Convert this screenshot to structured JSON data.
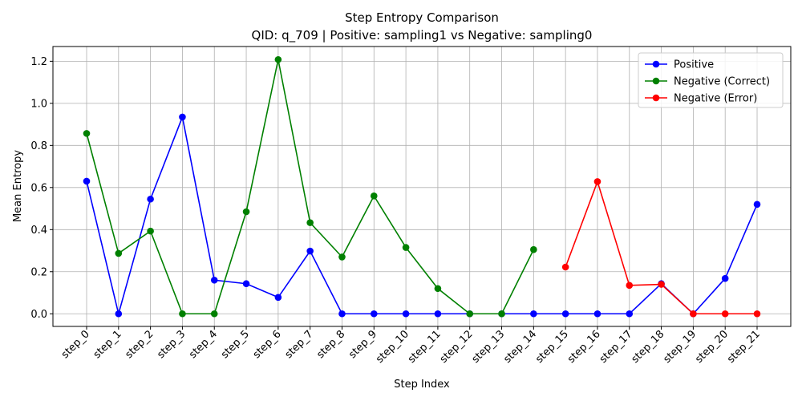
{
  "chart_data": {
    "type": "line",
    "title": "Step Entropy Comparison",
    "subtitle": "QID: q_709 | Positive: sampling1 vs Negative: sampling0",
    "xlabel": "Step Index",
    "ylabel": "Mean Entropy",
    "ylim": [
      -0.06,
      1.27
    ],
    "yticks": [
      0.0,
      0.2,
      0.4,
      0.6,
      0.8,
      1.0,
      1.2
    ],
    "ytick_labels": [
      "0.0",
      "0.2",
      "0.4",
      "0.6",
      "0.8",
      "1.0",
      "1.2"
    ],
    "categories": [
      "step_0",
      "step_1",
      "step_2",
      "step_3",
      "step_4",
      "step_5",
      "step_6",
      "step_7",
      "step_8",
      "step_9",
      "step_10",
      "step_11",
      "step_12",
      "step_13",
      "step_14",
      "step_15",
      "step_16",
      "step_17",
      "step_18",
      "step_19",
      "step_20",
      "step_21"
    ],
    "grid": true,
    "legend_position": "top-right",
    "series": [
      {
        "name": "Positive",
        "color": "#0000ff",
        "values": [
          0.63,
          0.0,
          0.545,
          0.935,
          0.16,
          0.143,
          0.078,
          0.298,
          0.0,
          0.0,
          0.0,
          0.0,
          0.0,
          0.0,
          0.0,
          0.0,
          0.0,
          0.0,
          0.143,
          0.0,
          0.168,
          0.52
        ]
      },
      {
        "name": "Negative (Correct)",
        "color": "#008000",
        "values": [
          0.857,
          0.287,
          0.393,
          0.0,
          0.0,
          0.485,
          1.208,
          0.433,
          0.27,
          0.56,
          0.315,
          0.12,
          0.0,
          0.0,
          0.305,
          null,
          null,
          null,
          null,
          null,
          null,
          null
        ]
      },
      {
        "name": "Negative (Error)",
        "color": "#ff0000",
        "values": [
          null,
          null,
          null,
          null,
          null,
          null,
          null,
          null,
          null,
          null,
          null,
          null,
          null,
          null,
          null,
          0.222,
          0.628,
          0.135,
          0.14,
          0.0,
          0.0,
          0.0
        ]
      }
    ]
  }
}
